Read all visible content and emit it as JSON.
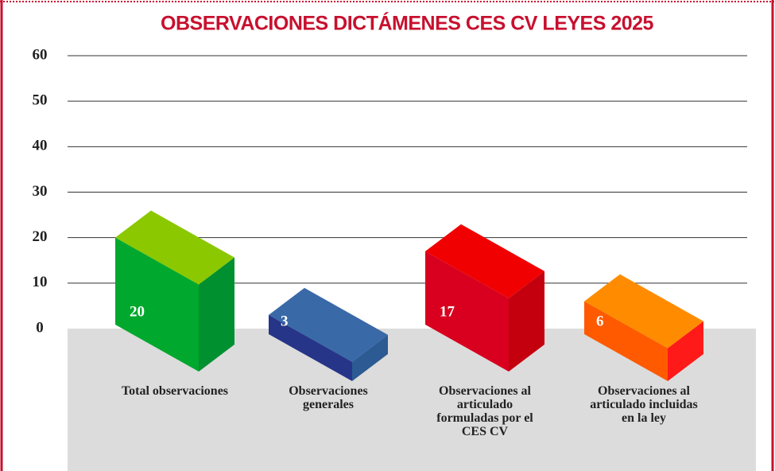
{
  "chart_data": {
    "type": "bar3d",
    "title": "OBSERVACIONES DICTÁMENES CES CV LEYES 2025",
    "categories": [
      "Total observaciones",
      "Observaciones generales",
      "Observaciones al articulado formuladas por el CES CV",
      "Observaciones al articulado incluidas en la ley"
    ],
    "values": [
      20,
      3,
      17,
      6
    ],
    "colors": [
      "#00a82d",
      "#263588",
      "#d8001e",
      "#ff5a00"
    ],
    "top_colors": [
      "#8cc800",
      "#3a69a8",
      "#f00000",
      "#ff8c00"
    ],
    "side_colors": [
      "#009030",
      "#2c5a92",
      "#c4000f",
      "#ff1a1a"
    ],
    "ylim": [
      0,
      60
    ],
    "yticks": [
      0,
      10,
      20,
      30,
      40,
      50,
      60
    ],
    "grid": true
  }
}
